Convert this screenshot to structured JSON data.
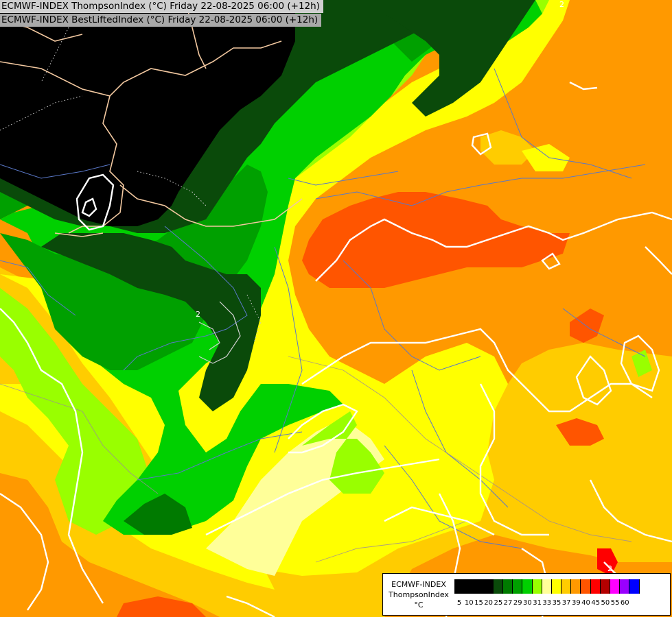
{
  "titles": {
    "line1": "ECMWF-INDEX ThompsonIndex (°C) Friday 22-08-2025 06:00 (+12h)",
    "line2": "ECMWF-INDEX BestLiftedIndex (°C) Friday 22-08-2025 06:00 (+12h)"
  },
  "legend": {
    "line1": "ECMWF-INDEX",
    "line2": "ThompsonIndex",
    "unit": "°C",
    "ticks": [
      "5",
      "10",
      "15",
      "20",
      "25",
      "27",
      "29",
      "30",
      "31",
      "33",
      "35",
      "37",
      "39",
      "40",
      "45",
      "50",
      "55",
      "60"
    ],
    "colors": [
      "#000000",
      "#000000",
      "#000000",
      "#000000",
      "#0a4a0a",
      "#007a00",
      "#00a000",
      "#00d000",
      "#99ff00",
      "#ffff99",
      "#ffff00",
      "#ffcc00",
      "#ff9900",
      "#ff5500",
      "#ff0000",
      "#b40000",
      "#ff00ff",
      "#9900ff",
      "#0000ff"
    ]
  },
  "contour_labels": [
    "2",
    "2",
    "2"
  ],
  "colors": {
    "black_zone": "#000000",
    "dark_green": "#0a4a0a",
    "green": "#00a000",
    "bright_green": "#00d000",
    "lime": "#99ff00",
    "pale_yellow": "#ffff99",
    "yellow": "#ffff00",
    "gold": "#ffcc00",
    "orange": "#ff9900",
    "red_orange": "#ff5500",
    "red": "#ff0000",
    "borders": "#f2c8a0",
    "rivers": "#5a78c8",
    "contours": "#ffffff"
  }
}
